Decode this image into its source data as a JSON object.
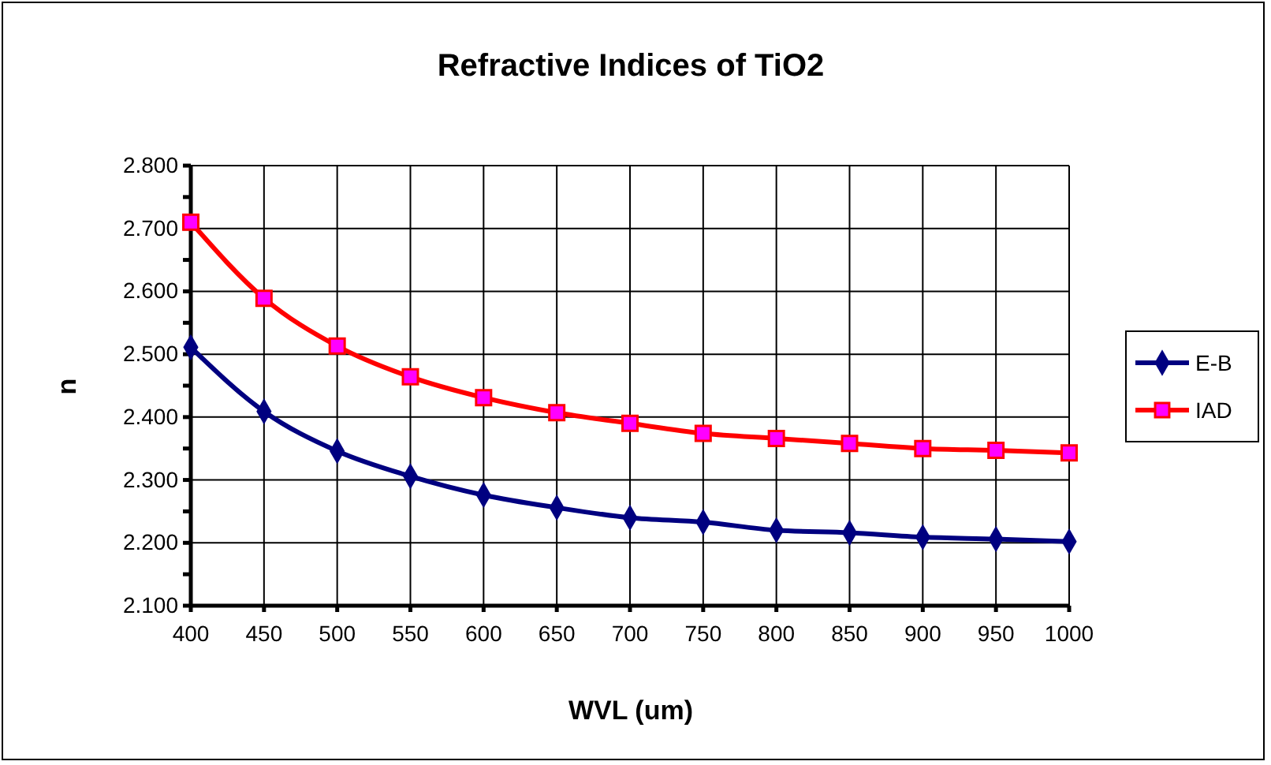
{
  "chart_data": {
    "type": "line",
    "title": "Refractive Indices of TiO2",
    "xlabel": "WVL (um)",
    "ylabel": "n",
    "x": [
      400,
      450,
      500,
      550,
      600,
      650,
      700,
      750,
      800,
      850,
      900,
      950,
      1000
    ],
    "series": [
      {
        "name": "E-B",
        "color": "#000080",
        "marker": "diamond",
        "values": [
          2.511,
          2.409,
          2.346,
          2.306,
          2.276,
          2.256,
          2.24,
          2.233,
          2.22,
          2.216,
          2.209,
          2.206,
          2.202
        ]
      },
      {
        "name": "IAD",
        "color": "#ff0000",
        "marker": "square",
        "values": [
          2.71,
          2.589,
          2.513,
          2.464,
          2.431,
          2.407,
          2.39,
          2.374,
          2.366,
          2.358,
          2.35,
          2.347,
          2.343
        ]
      }
    ],
    "xlim": [
      400,
      1000
    ],
    "xticks": [
      400,
      450,
      500,
      550,
      600,
      650,
      700,
      750,
      800,
      850,
      900,
      950,
      1000
    ],
    "ylim": [
      2.1,
      2.8
    ],
    "yticks": [
      {
        "value": 2.1,
        "label": "2.100"
      },
      {
        "value": 2.15,
        "label": null
      },
      {
        "value": 2.2,
        "label": "2.200"
      },
      {
        "value": 2.25,
        "label": null
      },
      {
        "value": 2.3,
        "label": "2.300"
      },
      {
        "value": 2.35,
        "label": null
      },
      {
        "value": 2.4,
        "label": "2.400"
      },
      {
        "value": 2.45,
        "label": null
      },
      {
        "value": 2.5,
        "label": "2.500"
      },
      {
        "value": 2.55,
        "label": null
      },
      {
        "value": 2.6,
        "label": "2.600"
      },
      {
        "value": 2.65,
        "label": null
      },
      {
        "value": 2.7,
        "label": "2.700"
      },
      {
        "value": 2.75,
        "label": null
      },
      {
        "value": 2.8,
        "label": "2.800"
      }
    ],
    "grid": true,
    "legend": "right",
    "line_style": "solid"
  }
}
